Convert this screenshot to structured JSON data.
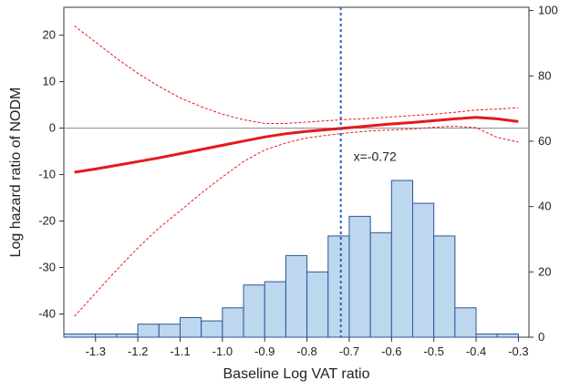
{
  "chart_data": {
    "type": "histogram-with-spline",
    "title": "",
    "xlabel": "Baseline Log VAT ratio",
    "ylabel_left": "Log hazard ratio of NODM",
    "ylabel_right": "",
    "xlim": [
      -1.375,
      -0.275
    ],
    "ylim_left": [
      -45,
      26
    ],
    "ylim_right": [
      0,
      101
    ],
    "x_ticks": [
      -1.3,
      -1.2,
      -1.1,
      -1.0,
      -0.9,
      -0.8,
      -0.7,
      -0.6,
      -0.5,
      -0.4,
      -0.3
    ],
    "x_tick_labels": [
      "-1.3",
      "-1.2",
      "-1.1",
      "-1.0",
      "-0.9",
      "-0.8",
      "-0.7",
      "-0.6",
      "-0.5",
      "-0.4",
      "-0.3"
    ],
    "y_ticks_left": [
      20,
      10,
      0,
      -10,
      -20,
      -30,
      -40
    ],
    "y_tick_labels_left": [
      "20",
      "10",
      "0",
      "-10",
      "-20",
      "-30",
      "-40"
    ],
    "y_ticks_right": [
      0,
      20,
      40,
      60,
      80,
      100
    ],
    "y_tick_labels_right": [
      "0",
      "20",
      "40",
      "60",
      "80",
      "100"
    ],
    "reference_line_y": 0,
    "cutoff_x": -0.72,
    "annotation": "x=-0.72",
    "histogram": {
      "bin_edges": [
        -1.375,
        -1.3,
        -1.25,
        -1.2,
        -1.15,
        -1.1,
        -1.05,
        -1.0,
        -0.95,
        -0.9,
        -0.85,
        -0.8,
        -0.75,
        -0.7,
        -0.65,
        -0.6,
        -0.55,
        -0.5,
        -0.45,
        -0.4,
        -0.35,
        -0.3
      ],
      "counts": [
        1,
        1,
        1,
        4,
        4,
        6,
        5,
        9,
        16,
        17,
        25,
        20,
        31,
        37,
        32,
        48,
        41,
        31,
        9,
        1,
        1
      ],
      "fill": "#bdd7ee",
      "stroke": "#2f5597"
    },
    "spline": {
      "color": "#e41a1c",
      "x": [
        -1.35,
        -1.3,
        -1.25,
        -1.2,
        -1.15,
        -1.1,
        -1.05,
        -1.0,
        -0.95,
        -0.9,
        -0.85,
        -0.8,
        -0.75,
        -0.7,
        -0.65,
        -0.6,
        -0.55,
        -0.5,
        -0.45,
        -0.4,
        -0.35,
        -0.3
      ],
      "fit": [
        -9.5,
        -8.8,
        -8.0,
        -7.2,
        -6.4,
        -5.5,
        -4.6,
        -3.7,
        -2.8,
        -1.9,
        -1.2,
        -0.7,
        -0.3,
        0.1,
        0.5,
        0.9,
        1.2,
        1.6,
        2.0,
        2.3,
        2.0,
        1.4
      ],
      "upper": [
        22.0,
        18.5,
        15.0,
        11.8,
        9.0,
        6.5,
        4.6,
        3.0,
        1.8,
        1.0,
        1.0,
        1.3,
        1.6,
        1.9,
        2.1,
        2.4,
        2.7,
        3.0,
        3.4,
        3.9,
        4.1,
        4.4
      ],
      "lower": [
        -40.5,
        -35.5,
        -30.5,
        -25.8,
        -21.5,
        -17.8,
        -14.0,
        -10.5,
        -7.2,
        -4.7,
        -3.2,
        -2.1,
        -1.5,
        -1.0,
        -0.6,
        -0.4,
        -0.2,
        0.2,
        0.4,
        0.1,
        -2.0,
        -3.0
      ]
    }
  }
}
